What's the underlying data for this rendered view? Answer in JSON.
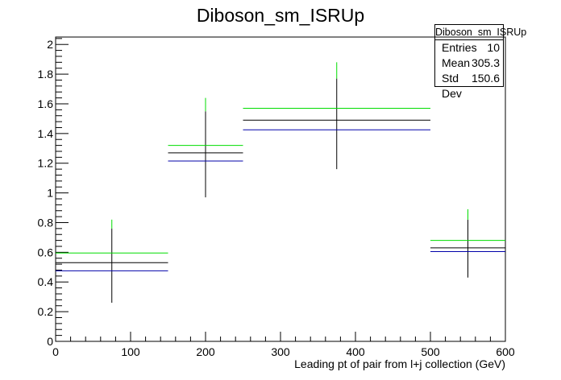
{
  "title": "Diboson_sm_ISRUp",
  "stats_box": {
    "name": "Diboson_sm_ISRUp",
    "rows": [
      {
        "label": "Entries",
        "value": "10"
      },
      {
        "label": "Mean",
        "value": "305.3"
      },
      {
        "label": "Std Dev",
        "value": "150.6"
      }
    ]
  },
  "chart_data": {
    "type": "histogram",
    "title": "Diboson_sm_ISRUp",
    "xlabel": "Leading pt of pair from l+j collection (GeV)",
    "ylabel": "",
    "xlim": [
      0,
      600
    ],
    "ylim": [
      0,
      2.05
    ],
    "x_ticks": [
      0,
      100,
      200,
      300,
      400,
      500,
      600
    ],
    "y_ticks": [
      0,
      0.2,
      0.4,
      0.6,
      0.8,
      1,
      1.2,
      1.4,
      1.6,
      1.8,
      2
    ],
    "x_tick_labels": [
      "0",
      "100",
      "200",
      "300",
      "400",
      "500",
      "600"
    ],
    "y_tick_labels": [
      "0",
      "0.2",
      "0.4",
      "0.6",
      "0.8",
      "1",
      "1.2",
      "1.4",
      "1.6",
      "1.8",
      "2"
    ],
    "bin_edges": [
      0,
      150,
      250,
      500,
      600
    ],
    "series": [
      {
        "color": "#000000",
        "centers": [
          75,
          200,
          375,
          550
        ],
        "values": [
          0.53,
          1.27,
          1.49,
          0.63
        ],
        "err_low": [
          0.26,
          0.97,
          1.16,
          0.43
        ],
        "err_high": [
          0.76,
          1.55,
          1.77,
          0.82
        ]
      },
      {
        "color": "#00dd00",
        "centers": [
          75,
          200,
          375,
          550
        ],
        "values": [
          0.595,
          1.32,
          1.57,
          0.68
        ],
        "err_low": [
          0.76,
          1.55,
          1.77,
          0.82
        ],
        "err_high": [
          0.82,
          1.64,
          1.88,
          0.89
        ]
      },
      {
        "color": "#0000aa",
        "centers": [
          75,
          200,
          375,
          550
        ],
        "values": [
          0.475,
          1.215,
          1.425,
          0.605
        ],
        "err_low": null,
        "err_high": null
      }
    ],
    "grid": false,
    "legend": "stats-box top-right"
  }
}
